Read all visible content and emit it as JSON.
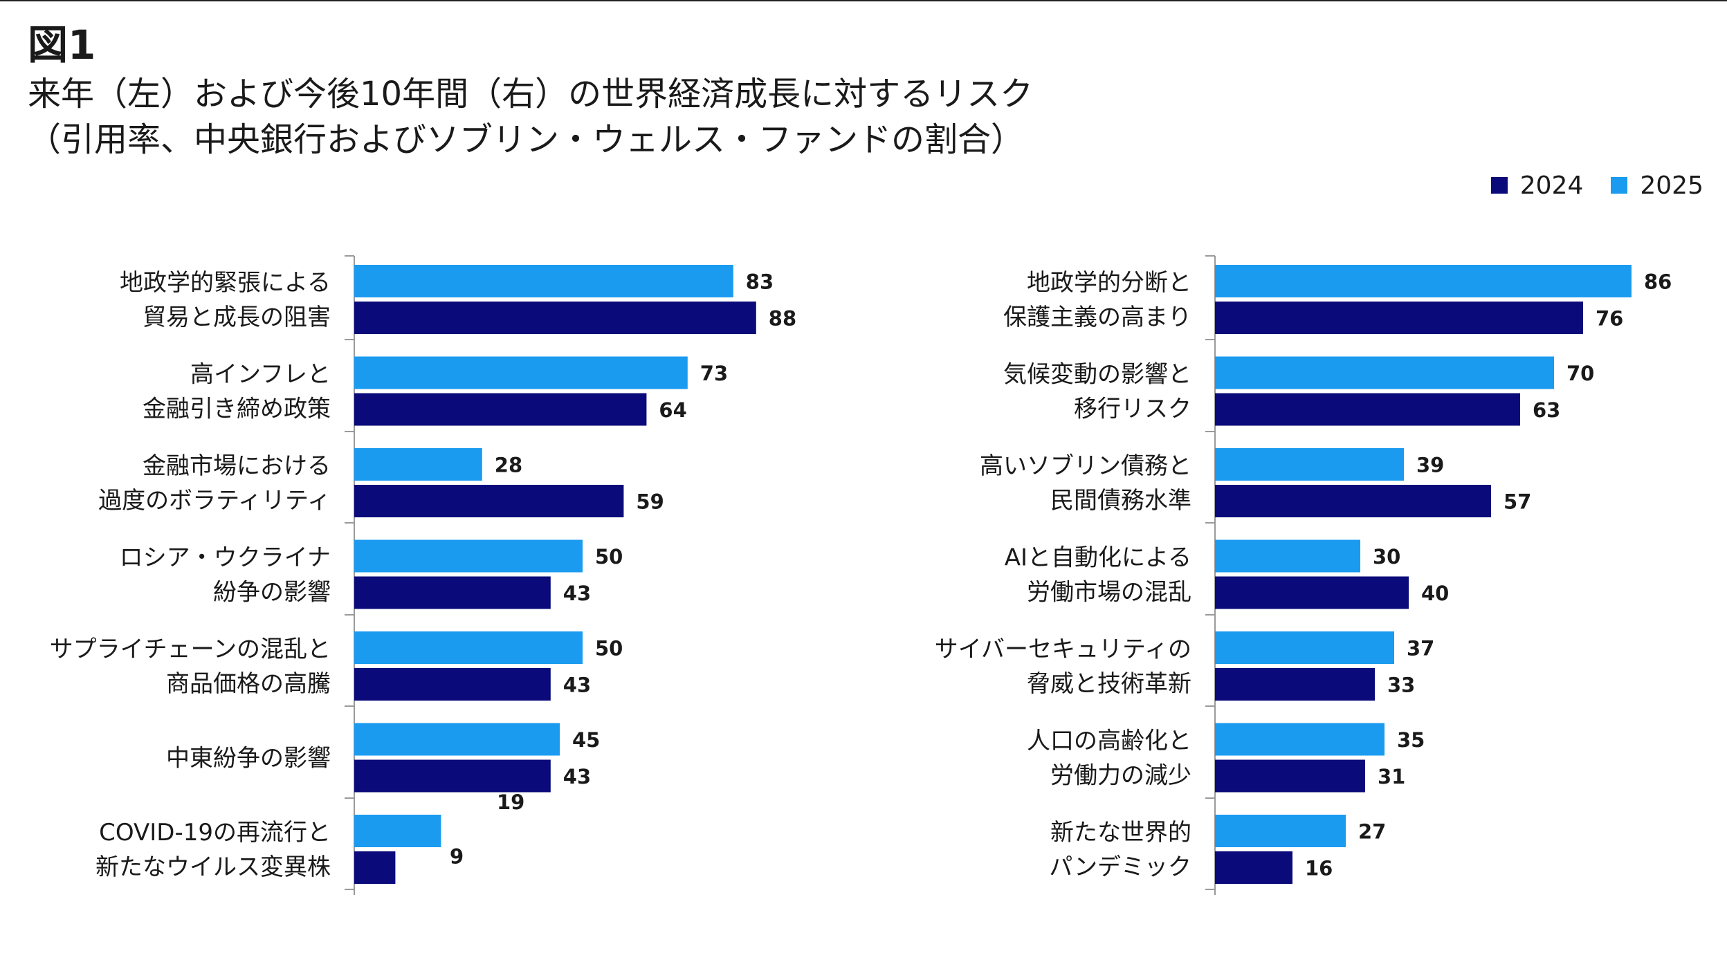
{
  "header": {
    "figure_label": "図1",
    "title_line1": "来年（左）および今後10年間（右）の世界経済成長に対するリスク",
    "title_line2": "（引用率、中央銀行およびソブリン・ウェルス・ファンドの割合）"
  },
  "legend": {
    "items": [
      {
        "label": "2024",
        "color": "#0a0a7a"
      },
      {
        "label": "2025",
        "color": "#1a9bf0"
      }
    ]
  },
  "chart_data": [
    {
      "type": "bar",
      "orientation": "horizontal",
      "title": "来年",
      "categories": [
        [
          "地政学的緊張による",
          "貿易と成長の阻害"
        ],
        [
          "高インフレと",
          "金融引き締め政策"
        ],
        [
          "金融市場における",
          "過度のボラティリティ"
        ],
        [
          "ロシア・ウクライナ",
          "紛争の影響"
        ],
        [
          "サプライチェーンの混乱と",
          "商品価格の高騰"
        ],
        [
          "中東紛争の影響"
        ],
        [
          "COVID-19の再流行と",
          "新たなウイルス変異株"
        ]
      ],
      "series": [
        {
          "name": "2025",
          "color": "#1a9bf0",
          "values": [
            83,
            73,
            28,
            50,
            50,
            45,
            19
          ]
        },
        {
          "name": "2024",
          "color": "#0a0a7a",
          "values": [
            88,
            64,
            59,
            43,
            43,
            43,
            9
          ]
        }
      ],
      "xlim": [
        0,
        100
      ]
    },
    {
      "type": "bar",
      "orientation": "horizontal",
      "title": "今後10年間",
      "categories": [
        [
          "地政学的分断と",
          "保護主義の高まり"
        ],
        [
          "気候変動の影響と",
          "移行リスク"
        ],
        [
          "高いソブリン債務と",
          "民間債務水準"
        ],
        [
          "AIと自動化による",
          "労働市場の混乱"
        ],
        [
          "サイバーセキュリティの",
          "脅威と技術革新"
        ],
        [
          "人口の高齢化と",
          "労働力の減少"
        ],
        [
          "新たな世界的",
          "パンデミック"
        ]
      ],
      "series": [
        {
          "name": "2025",
          "color": "#1a9bf0",
          "values": [
            86,
            70,
            39,
            30,
            37,
            35,
            27
          ]
        },
        {
          "name": "2024",
          "color": "#0a0a7a",
          "values": [
            76,
            63,
            57,
            40,
            33,
            31,
            16
          ]
        }
      ],
      "xlim": [
        0,
        100
      ]
    }
  ]
}
